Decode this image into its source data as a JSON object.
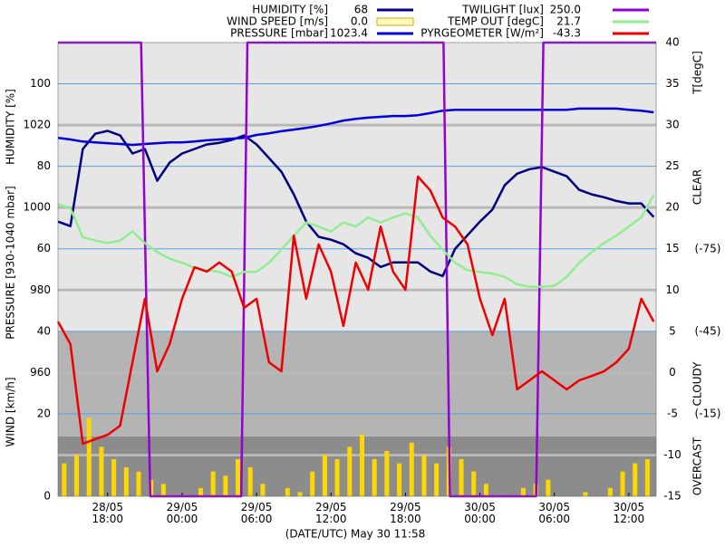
{
  "chart_data": {
    "type": "line",
    "x_label": "(DATE/UTC) May 30 11:58",
    "xlim": [
      "28/05 14:00",
      "30/05 14:12"
    ],
    "xticks": [
      "28/05 18:00",
      "29/05 00:00",
      "29/05 06:00",
      "29/05 12:00",
      "29/05 18:00",
      "30/05 00:00",
      "30/05 06:00",
      "30/05 12:00"
    ],
    "y_axes": {
      "humidity": {
        "label": "HUMIDITY [%]",
        "ylim": [
          0,
          110
        ],
        "yticks": [
          60,
          80,
          100
        ]
      },
      "pressure": {
        "label": "PRESSURE [930-1040 mbar]",
        "ylim": [
          930,
          1040
        ],
        "yticks": [
          960,
          980,
          1000,
          1020
        ]
      },
      "wind": {
        "label": "WIND [km/h]",
        "ylim": [
          0,
          110
        ],
        "yticks": [
          0,
          20,
          40
        ]
      },
      "temp": {
        "label": "T[degC]",
        "ylim": [
          -15,
          40
        ],
        "yticks": [
          -15,
          -10,
          -5,
          0,
          5,
          10,
          15,
          20,
          25,
          30,
          35,
          40
        ]
      },
      "pyrgeometer": {
        "ylim": [
          15,
          -150.2
        ],
        "yticks": [
          {
            "value": -75,
            "label": "(-75)"
          },
          {
            "value": -45,
            "label": "(-45)"
          },
          {
            "value": -15,
            "label": "(-15)"
          }
        ]
      },
      "twilight": {
        "ylim": [
          0,
          250
        ]
      }
    },
    "zones": [
      {
        "label": "CLEAR",
        "from": -150.2,
        "to": -45,
        "color": "#e6e6e6"
      },
      {
        "label": "CLOUDY",
        "from": -45,
        "to": -6.8,
        "color": "#b4b4b4"
      },
      {
        "label": "OVERCAST",
        "from": -6.8,
        "to": 15,
        "color": "#8c8c8c"
      }
    ],
    "x": [
      "28/05 14:00",
      "28/05 15:00",
      "28/05 16:00",
      "28/05 17:00",
      "28/05 18:00",
      "28/05 19:00",
      "28/05 20:00",
      "28/05 21:00",
      "28/05 22:00",
      "28/05 23:00",
      "29/05 00:00",
      "29/05 01:00",
      "29/05 02:00",
      "29/05 03:00",
      "29/05 04:00",
      "29/05 05:00",
      "29/05 06:00",
      "29/05 07:00",
      "29/05 08:00",
      "29/05 09:00",
      "29/05 10:00",
      "29/05 11:00",
      "29/05 12:00",
      "29/05 13:00",
      "29/05 14:00",
      "29/05 15:00",
      "29/05 16:00",
      "29/05 17:00",
      "29/05 18:00",
      "29/05 19:00",
      "29/05 20:00",
      "29/05 21:00",
      "29/05 22:00",
      "29/05 23:00",
      "30/05 00:00",
      "30/05 01:00",
      "30/05 02:00",
      "30/05 03:00",
      "30/05 04:00",
      "30/05 05:00",
      "30/05 06:00",
      "30/05 07:00",
      "30/05 08:00",
      "30/05 09:00",
      "30/05 10:00",
      "30/05 11:00",
      "30/05 12:00",
      "30/05 13:00",
      "30/05 14:00"
    ],
    "series": [
      {
        "name": "HUMIDITY [%]",
        "color": "#000080",
        "axis": "humidity",
        "type": "line",
        "current": 68,
        "values": [
          66.6,
          65.5,
          84.2,
          87.9,
          88.6,
          87.5,
          83.1,
          84.2,
          76.5,
          80.9,
          83.1,
          84.2,
          85.3,
          85.7,
          86.4,
          87.5,
          85.3,
          82.0,
          78.7,
          73.2,
          66.6,
          62.9,
          62.2,
          61.1,
          58.9,
          57.8,
          55.6,
          56.7,
          56.7,
          56.7,
          54.5,
          53.4,
          60.0,
          63.3,
          66.6,
          69.5,
          75.4,
          78.2,
          79.3,
          79.8,
          78.7,
          77.6,
          74.3,
          73.2,
          72.5,
          71.6,
          71.0,
          71.0,
          67.7
        ]
      },
      {
        "name": "WIND SPEED [m/s]",
        "color": "#ffd700",
        "axis": "wind",
        "type": "bar",
        "current": 0,
        "current_label": "0.0",
        "x": [
          "28/05 14:30",
          "28/05 15:30",
          "28/05 16:30",
          "28/05 17:30",
          "28/05 18:30",
          "28/05 19:30",
          "28/05 20:30",
          "28/05 21:30",
          "28/05 22:30",
          "28/05 23:30",
          "29/05 00:30",
          "29/05 01:30",
          "29/05 02:30",
          "29/05 03:30",
          "29/05 04:30",
          "29/05 05:30",
          "29/05 06:30",
          "29/05 07:30",
          "29/05 08:30",
          "29/05 09:30",
          "29/05 10:30",
          "29/05 11:30",
          "29/05 12:30",
          "29/05 13:30",
          "29/05 14:30",
          "29/05 15:30",
          "29/05 16:30",
          "29/05 17:30",
          "29/05 18:30",
          "29/05 19:30",
          "29/05 20:30",
          "29/05 21:30",
          "29/05 22:30",
          "29/05 23:30",
          "30/05 00:30",
          "30/05 01:30",
          "30/05 02:30",
          "30/05 03:30",
          "30/05 04:30",
          "30/05 05:30",
          "30/05 06:30",
          "30/05 07:30",
          "30/05 08:30",
          "30/05 09:30",
          "30/05 10:30",
          "30/05 11:30",
          "30/05 12:30",
          "30/05 13:30"
        ],
        "values": [
          8,
          10,
          19,
          12,
          9,
          7,
          6,
          4,
          3,
          0,
          0,
          2,
          6,
          5,
          9,
          7,
          3,
          0,
          2,
          1,
          6,
          10,
          9,
          12,
          15,
          9,
          11,
          8,
          13,
          10,
          8,
          12,
          9,
          6,
          3,
          0,
          0,
          2,
          3,
          4,
          0,
          0,
          1,
          0,
          2,
          6,
          8,
          9
        ]
      },
      {
        "name": "PRESSURE [mbar]",
        "color": "#0000dd",
        "axis": "pressure",
        "type": "line",
        "current": 1023.4,
        "values": [
          1016.9,
          1016.5,
          1016.0,
          1015.8,
          1015.6,
          1015.4,
          1015.2,
          1015.4,
          1015.6,
          1015.8,
          1015.8,
          1016.0,
          1016.3,
          1016.5,
          1016.7,
          1016.9,
          1017.6,
          1018.0,
          1018.5,
          1018.9,
          1019.3,
          1019.8,
          1020.4,
          1021.1,
          1021.5,
          1021.8,
          1022.0,
          1022.2,
          1022.2,
          1022.4,
          1022.9,
          1023.5,
          1023.7,
          1023.7,
          1023.7,
          1023.7,
          1023.7,
          1023.7,
          1023.7,
          1023.7,
          1023.7,
          1023.7,
          1024.0,
          1024.0,
          1024.0,
          1024.0,
          1023.7,
          1023.5,
          1023.1
        ]
      },
      {
        "name": "TWILIGHT [lux]",
        "color": "#9400d3",
        "axis": "twilight",
        "type": "line",
        "current": 250,
        "current_label": "250.0",
        "x": [
          "28/05 14:00",
          "28/05 20:42",
          "28/05 21:26",
          "29/05 04:46",
          "29/05 05:16",
          "29/05 21:04",
          "29/05 21:35",
          "30/05 04:32",
          "30/05 05:07",
          "30/05 14:12"
        ],
        "values": [
          250,
          250,
          0,
          0,
          250,
          250,
          0,
          0,
          250,
          250
        ]
      },
      {
        "name": "TEMP OUT [degC]",
        "color": "#90ee90",
        "axis": "temp",
        "type": "line",
        "current": 21.7,
        "values": [
          20.4,
          19.9,
          16.4,
          16.0,
          15.7,
          16.0,
          17.1,
          15.7,
          14.6,
          13.8,
          13.3,
          12.7,
          12.4,
          12.2,
          11.6,
          12.2,
          12.2,
          13.3,
          14.9,
          16.6,
          18.2,
          17.7,
          17.1,
          18.2,
          17.7,
          18.8,
          18.2,
          18.8,
          19.3,
          18.8,
          16.6,
          14.9,
          13.3,
          12.4,
          12.2,
          12.0,
          11.6,
          10.7,
          10.4,
          10.4,
          10.5,
          11.6,
          13.3,
          14.6,
          15.7,
          16.6,
          17.7,
          18.8,
          21.5
        ]
      },
      {
        "name": "PYRGEOMETER [W/m²]",
        "color": "#ee0000",
        "axis": "pyrgeometer",
        "type": "line",
        "current": -43.3,
        "values": [
          -48.6,
          -40.4,
          -4.1,
          -5.8,
          -7.4,
          -10.7,
          -33.8,
          -56.9,
          -30.5,
          -40.4,
          -56.9,
          -68.4,
          -66.8,
          -70.1,
          -66.8,
          -53.6,
          -56.9,
          -33.8,
          -30.5,
          -79.9,
          -56.9,
          -76.7,
          -66.8,
          -47.0,
          -70.1,
          -60.2,
          -83.2,
          -66.8,
          -60.2,
          -101.4,
          -96.4,
          -86.5,
          -83.2,
          -76.7,
          -56.9,
          -43.7,
          -56.9,
          -23.9,
          -27.2,
          -30.5,
          -27.2,
          -23.9,
          -27.2,
          -28.8,
          -30.5,
          -33.8,
          -38.7,
          -56.9,
          -48.6
        ]
      }
    ]
  }
}
